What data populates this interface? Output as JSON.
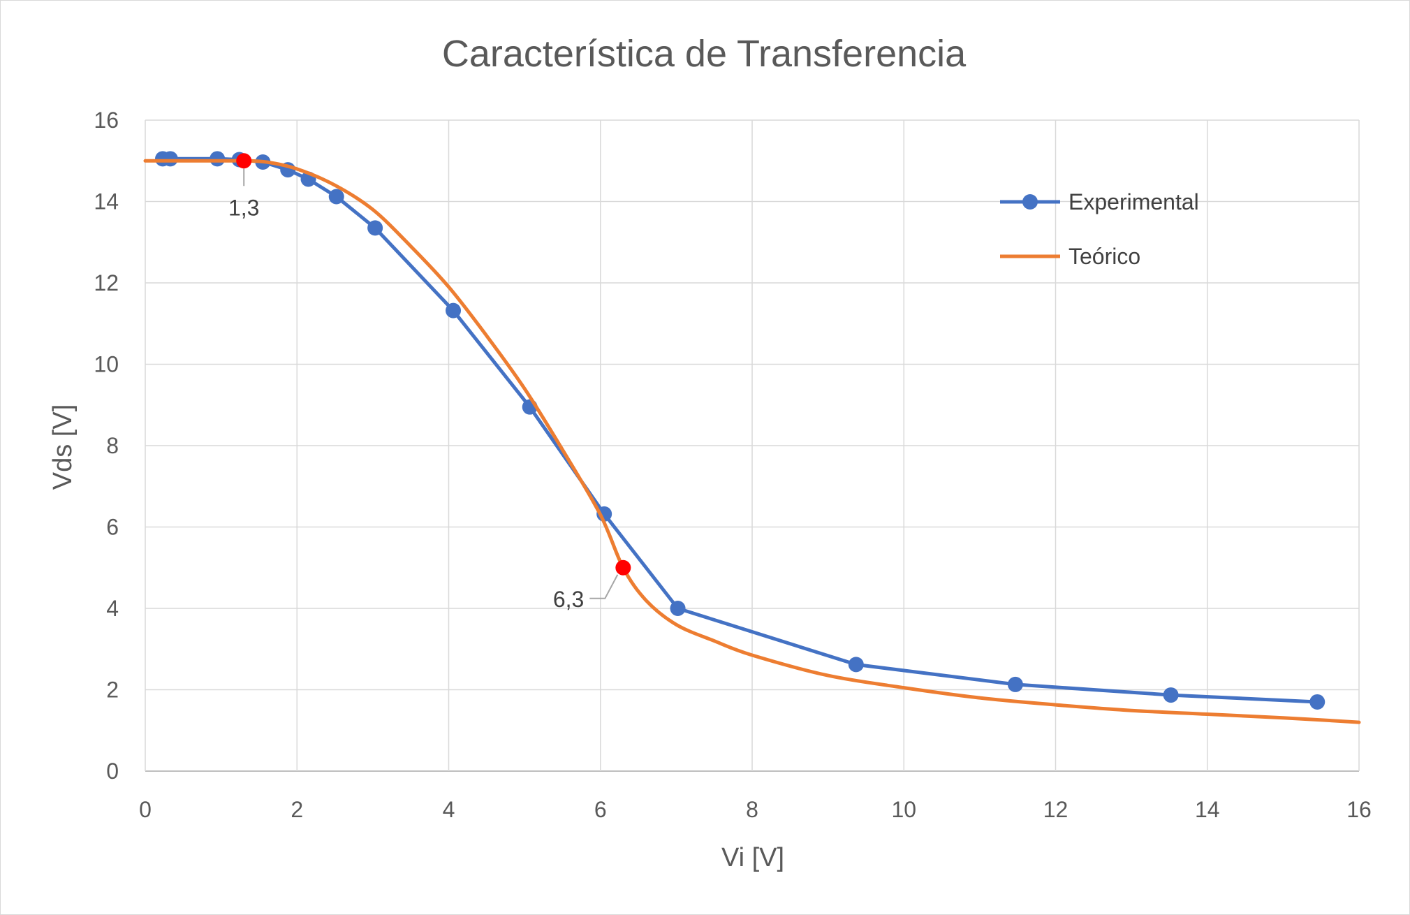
{
  "chart_data": {
    "type": "line",
    "title": "Característica de Transferencia",
    "xlabel": "Vi [V]",
    "ylabel": "Vds [V]",
    "xlim": [
      0,
      16
    ],
    "ylim": [
      0,
      16
    ],
    "x_ticks": [
      0,
      2,
      4,
      6,
      8,
      10,
      12,
      14,
      16
    ],
    "y_ticks": [
      0,
      2,
      4,
      6,
      8,
      10,
      12,
      14,
      16
    ],
    "x_tick_labels": [
      "0",
      "2",
      "4",
      "6",
      "8",
      "10",
      "12",
      "14",
      "16"
    ],
    "y_tick_labels": [
      "0",
      "2",
      "4",
      "6",
      "8",
      "10",
      "12",
      "14",
      "16"
    ],
    "grid": true,
    "legend_position": "top-right",
    "series": [
      {
        "name": "Experimental",
        "color": "#4472c4",
        "markers": true,
        "x": [
          0.23,
          0.33,
          0.95,
          1.24,
          1.55,
          1.88,
          2.15,
          2.52,
          3.03,
          4.06,
          5.07,
          6.05,
          7.02,
          9.37,
          11.47,
          13.52,
          15.45
        ],
        "y": [
          15.05,
          15.05,
          15.05,
          15.03,
          14.97,
          14.78,
          14.55,
          14.12,
          13.35,
          11.32,
          8.95,
          6.32,
          4.0,
          2.62,
          2.13,
          1.87,
          1.7
        ]
      },
      {
        "name": "Teórico",
        "color": "#ed7d31",
        "markers": false,
        "x": [
          0,
          0.5,
          1.0,
          1.3,
          1.6,
          2.0,
          2.5,
          3.0,
          3.5,
          4.0,
          4.5,
          5.0,
          5.5,
          6.0,
          6.3,
          6.6,
          7.0,
          7.5,
          8.0,
          9.0,
          10.0,
          11.0,
          12.0,
          13.0,
          14.0,
          15.0,
          16.0
        ],
        "y": [
          15.0,
          15.0,
          15.0,
          15.0,
          14.97,
          14.8,
          14.4,
          13.8,
          12.9,
          11.9,
          10.7,
          9.4,
          7.9,
          6.3,
          5.0,
          4.2,
          3.6,
          3.2,
          2.85,
          2.35,
          2.05,
          1.8,
          1.63,
          1.49,
          1.4,
          1.31,
          1.2
        ]
      }
    ],
    "highlight_points": [
      {
        "x": 1.3,
        "y": 15.0,
        "label": "1,3",
        "color": "#ff0000"
      },
      {
        "x": 6.3,
        "y": 5.0,
        "label": "6,3",
        "color": "#ff0000"
      }
    ]
  }
}
